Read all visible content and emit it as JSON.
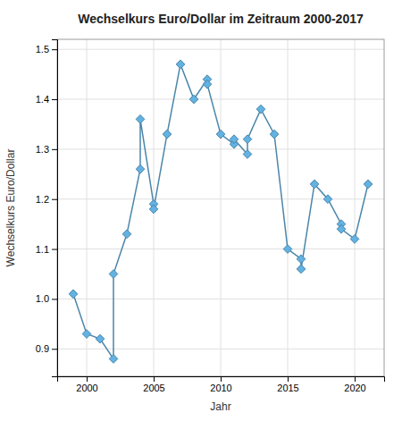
{
  "chart_data": {
    "type": "line",
    "title": "Wechselkurs Euro/Dollar im Zeitraum 2000-2017",
    "x_label": "Jahr",
    "y_label": "Wechselkurs Euro/Dollar",
    "x": [
      1999,
      2000,
      2001,
      2002,
      2002,
      2003,
      2004,
      2004,
      2005,
      2005,
      2006,
      2007,
      2008,
      2009,
      2009,
      2010,
      2011,
      2011,
      2012,
      2012,
      2013,
      2014,
      2015,
      2016,
      2016,
      2017,
      2018,
      2019,
      2019,
      2020,
      2021
    ],
    "values": [
      1.01,
      0.93,
      0.92,
      0.88,
      1.05,
      1.13,
      1.26,
      1.36,
      1.19,
      1.18,
      1.33,
      1.47,
      1.4,
      1.44,
      1.43,
      1.33,
      1.31,
      1.32,
      1.29,
      1.32,
      1.38,
      1.33,
      1.1,
      1.08,
      1.06,
      1.23,
      1.2,
      1.15,
      1.14,
      1.12,
      1.23
    ],
    "color": "#4a86aa",
    "marker": "diamond",
    "xlim": [
      1997.8,
      2022.2
    ],
    "ylim": [
      0.845,
      1.52
    ],
    "xticks": [
      2000,
      2005,
      2010,
      2015,
      2020
    ],
    "yticks": [
      0.9,
      {
        "value": 1.0,
        "label": "1.0"
      },
      1.1,
      1.2,
      1.3,
      1.4,
      1.5
    ],
    "grid": true
  }
}
